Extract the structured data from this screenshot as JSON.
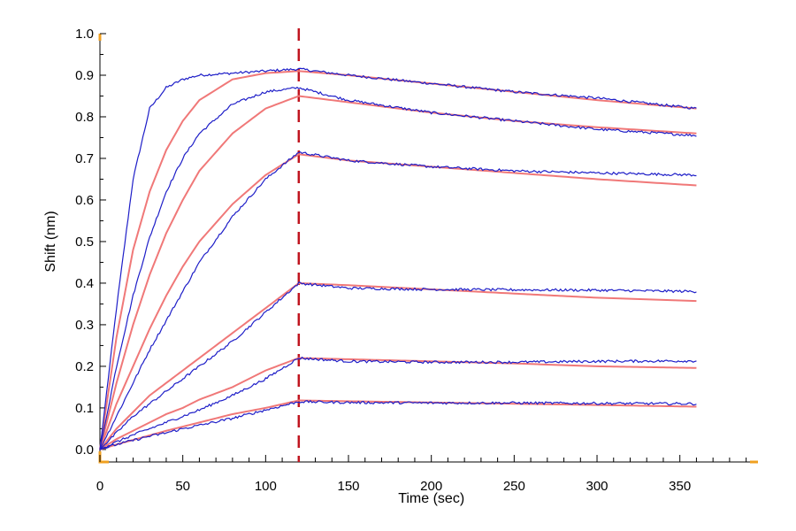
{
  "chart_data": {
    "type": "line",
    "title": "",
    "xlabel": "Time (sec)",
    "ylabel": "Shift (nm)",
    "xlim": [
      0,
      395
    ],
    "ylim": [
      -0.03,
      1.0
    ],
    "x_ticks": [
      0,
      50,
      100,
      150,
      200,
      250,
      300,
      350
    ],
    "y_ticks": [
      0.0,
      0.1,
      0.2,
      0.3,
      0.4,
      0.5,
      0.6,
      0.7,
      0.8,
      0.9,
      1.0
    ],
    "y_tick_labels": [
      "0.0",
      "0.1",
      "0.2",
      "0.3",
      "0.4",
      "0.5",
      "0.6",
      "0.7",
      "0.8",
      "0.9",
      "1.0"
    ],
    "x_tick_labels": [
      "0",
      "50",
      "100",
      "150",
      "200",
      "250",
      "300",
      "350"
    ],
    "grid": false,
    "legend": "none",
    "marker_line": {
      "x": 120,
      "style": "dashed",
      "color": "#c0141e"
    },
    "colors": {
      "measured": "#1e1ec8",
      "fit": "#f07878",
      "axis": "#000000",
      "axis_end_marker": "#f0a020"
    },
    "association_end": 120,
    "end_time": 360,
    "series": [
      {
        "measured": {
          "x": [
            0,
            10,
            20,
            30,
            40,
            50,
            60,
            80,
            100,
            120,
            150,
            200,
            250,
            300,
            360
          ],
          "y": [
            0,
            0.34,
            0.65,
            0.82,
            0.87,
            0.89,
            0.9,
            0.905,
            0.91,
            0.915,
            0.9,
            0.88,
            0.86,
            0.845,
            0.82
          ]
        },
        "fit": {
          "x": [
            0,
            10,
            20,
            30,
            40,
            50,
            60,
            80,
            100,
            120,
            150,
            200,
            250,
            300,
            360
          ],
          "y": [
            0,
            0.27,
            0.48,
            0.62,
            0.72,
            0.79,
            0.84,
            0.89,
            0.905,
            0.91,
            0.9,
            0.88,
            0.86,
            0.84,
            0.82
          ]
        }
      },
      {
        "measured": {
          "x": [
            0,
            10,
            20,
            30,
            40,
            50,
            60,
            80,
            100,
            120,
            150,
            200,
            250,
            300,
            360
          ],
          "y": [
            0,
            0.2,
            0.37,
            0.51,
            0.62,
            0.7,
            0.76,
            0.83,
            0.86,
            0.87,
            0.84,
            0.81,
            0.79,
            0.77,
            0.755
          ]
        },
        "fit": {
          "x": [
            0,
            10,
            20,
            30,
            40,
            50,
            60,
            80,
            100,
            120,
            150,
            200,
            250,
            300,
            360
          ],
          "y": [
            0,
            0.16,
            0.3,
            0.42,
            0.52,
            0.6,
            0.67,
            0.76,
            0.82,
            0.85,
            0.835,
            0.81,
            0.79,
            0.775,
            0.76
          ]
        }
      },
      {
        "measured": {
          "x": [
            0,
            10,
            20,
            30,
            40,
            50,
            60,
            80,
            100,
            120,
            150,
            200,
            250,
            300,
            360
          ],
          "y": [
            0,
            0.08,
            0.16,
            0.24,
            0.31,
            0.38,
            0.45,
            0.56,
            0.65,
            0.715,
            0.695,
            0.68,
            0.67,
            0.665,
            0.66
          ]
        },
        "fit": {
          "x": [
            0,
            10,
            20,
            30,
            40,
            50,
            60,
            80,
            100,
            120,
            150,
            200,
            250,
            300,
            360
          ],
          "y": [
            0,
            0.11,
            0.2,
            0.29,
            0.37,
            0.44,
            0.5,
            0.59,
            0.66,
            0.71,
            0.695,
            0.68,
            0.665,
            0.65,
            0.635
          ]
        }
      },
      {
        "measured": {
          "x": [
            0,
            10,
            20,
            30,
            40,
            50,
            60,
            80,
            100,
            120,
            150,
            200,
            250,
            300,
            360
          ],
          "y": [
            0,
            0.04,
            0.08,
            0.11,
            0.14,
            0.17,
            0.2,
            0.26,
            0.33,
            0.4,
            0.388,
            0.385,
            0.384,
            0.383,
            0.38
          ]
        },
        "fit": {
          "x": [
            0,
            10,
            20,
            30,
            40,
            50,
            60,
            80,
            100,
            120,
            150,
            200,
            250,
            300,
            360
          ],
          "y": [
            0,
            0.05,
            0.09,
            0.13,
            0.16,
            0.19,
            0.22,
            0.28,
            0.34,
            0.4,
            0.395,
            0.385,
            0.375,
            0.365,
            0.357
          ]
        }
      },
      {
        "measured": {
          "x": [
            0,
            10,
            20,
            30,
            40,
            50,
            60,
            80,
            100,
            120,
            150,
            200,
            250,
            300,
            360
          ],
          "y": [
            0,
            0.018,
            0.035,
            0.05,
            0.065,
            0.08,
            0.095,
            0.13,
            0.17,
            0.22,
            0.212,
            0.21,
            0.21,
            0.212,
            0.213
          ]
        },
        "fit": {
          "x": [
            0,
            10,
            20,
            30,
            40,
            50,
            60,
            80,
            100,
            120,
            150,
            200,
            250,
            300,
            360
          ],
          "y": [
            0,
            0.025,
            0.045,
            0.065,
            0.085,
            0.1,
            0.12,
            0.15,
            0.19,
            0.22,
            0.217,
            0.212,
            0.207,
            0.2,
            0.196
          ]
        }
      },
      {
        "measured": {
          "x": [
            0,
            10,
            20,
            30,
            40,
            50,
            60,
            80,
            100,
            120,
            150,
            200,
            250,
            300,
            360
          ],
          "y": [
            0,
            0.012,
            0.022,
            0.032,
            0.04,
            0.05,
            0.058,
            0.075,
            0.095,
            0.115,
            0.113,
            0.112,
            0.112,
            0.111,
            0.11
          ]
        },
        "fit": {
          "x": [
            0,
            10,
            20,
            30,
            40,
            50,
            60,
            80,
            100,
            120,
            150,
            200,
            250,
            300,
            360
          ],
          "y": [
            0,
            0.012,
            0.023,
            0.034,
            0.045,
            0.055,
            0.065,
            0.085,
            0.1,
            0.118,
            0.116,
            0.113,
            0.11,
            0.107,
            0.103
          ]
        }
      }
    ]
  }
}
